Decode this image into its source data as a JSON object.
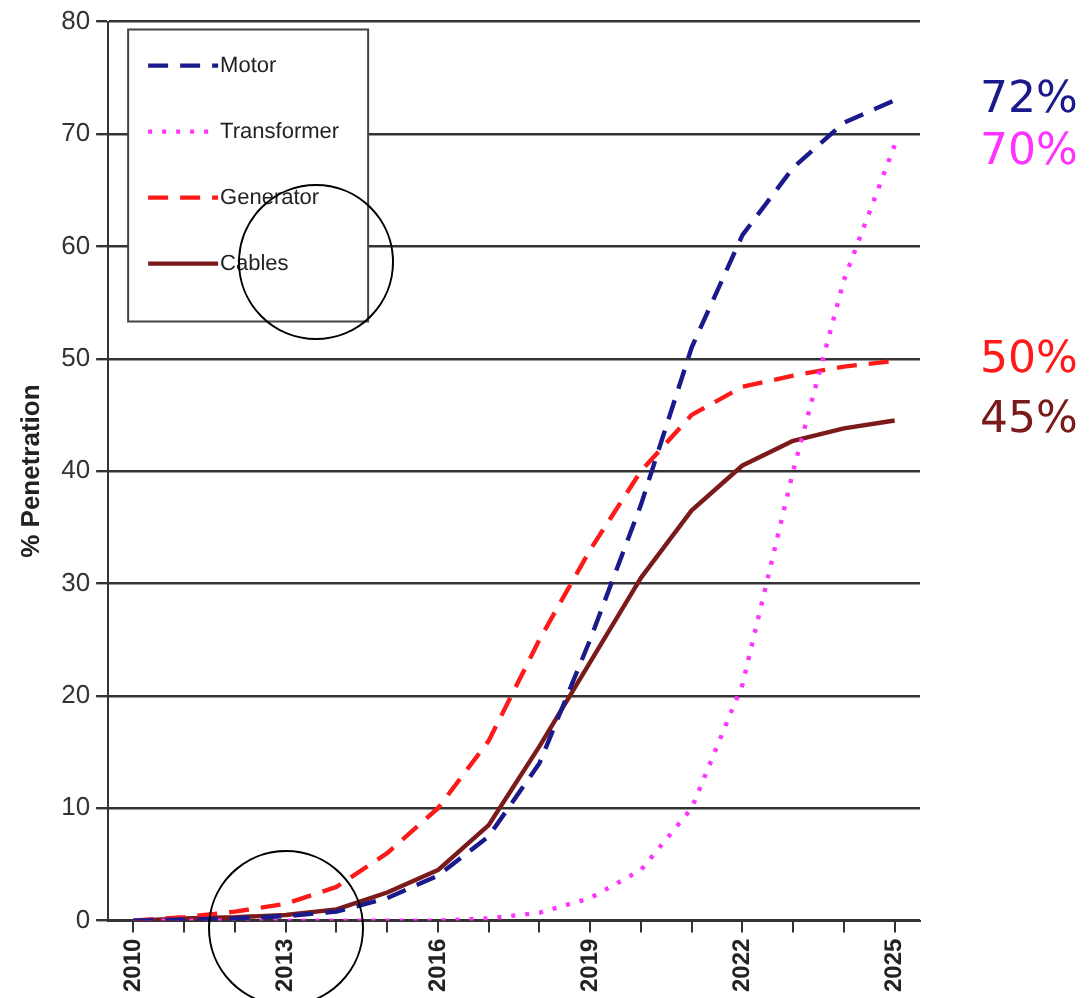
{
  "chart_data": {
    "type": "line",
    "ylabel": "% Penetration",
    "x": [
      2010,
      2011,
      2012,
      2013,
      2014,
      2015,
      2016,
      2017,
      2018,
      2019,
      2020,
      2021,
      2022,
      2023,
      2024,
      2025
    ],
    "series": [
      {
        "name": "Motor",
        "color": "#1a1a8c",
        "line_style": "dashed",
        "values": [
          0,
          0.1,
          0.2,
          0.4,
          0.8,
          2,
          4,
          7.5,
          14,
          25,
          37,
          51,
          61,
          67,
          71,
          73
        ]
      },
      {
        "name": "Transformer",
        "color": "#ff33ff",
        "line_style": "dotted",
        "values": [
          0,
          0,
          0,
          0,
          0,
          0,
          0,
          0.2,
          0.7,
          2,
          4.5,
          10,
          21,
          40,
          57,
          69
        ]
      },
      {
        "name": "Generator",
        "color": "#ff1a1a",
        "line_style": "dashed",
        "values": [
          0,
          0.3,
          0.8,
          1.5,
          3,
          6,
          10,
          16,
          25,
          33,
          40,
          45,
          47.5,
          48.5,
          49.3,
          49.8
        ]
      },
      {
        "name": "Cables",
        "color": "#7a1a1a",
        "line_style": "solid",
        "values": [
          0,
          0.2,
          0.3,
          0.5,
          1,
          2.5,
          4.5,
          8.5,
          15.5,
          23,
          30.5,
          36.5,
          40.5,
          42.7,
          43.8,
          44.5
        ]
      }
    ],
    "xlim": [
      2009.5,
      2025.5
    ],
    "xticks": [
      2010,
      {
        "value": 2011,
        "label": null
      },
      {
        "value": 2012,
        "label": null
      },
      2013,
      {
        "value": 2014,
        "label": null
      },
      {
        "value": 2015,
        "label": null
      },
      2016,
      {
        "value": 2017,
        "label": null
      },
      {
        "value": 2018,
        "label": null
      },
      2019,
      {
        "value": 2020,
        "label": null
      },
      {
        "value": 2021,
        "label": null
      },
      2022,
      {
        "value": 2023,
        "label": null
      },
      {
        "value": 2024,
        "label": null
      },
      2025
    ],
    "ylim": [
      0,
      80
    ],
    "yticks": [
      0,
      10,
      20,
      30,
      40,
      50,
      60,
      70,
      80
    ],
    "grid": "y",
    "legend": "top left",
    "marker": "none",
    "annotations": [
      "72%",
      "70%",
      "50%",
      "45%"
    ]
  }
}
